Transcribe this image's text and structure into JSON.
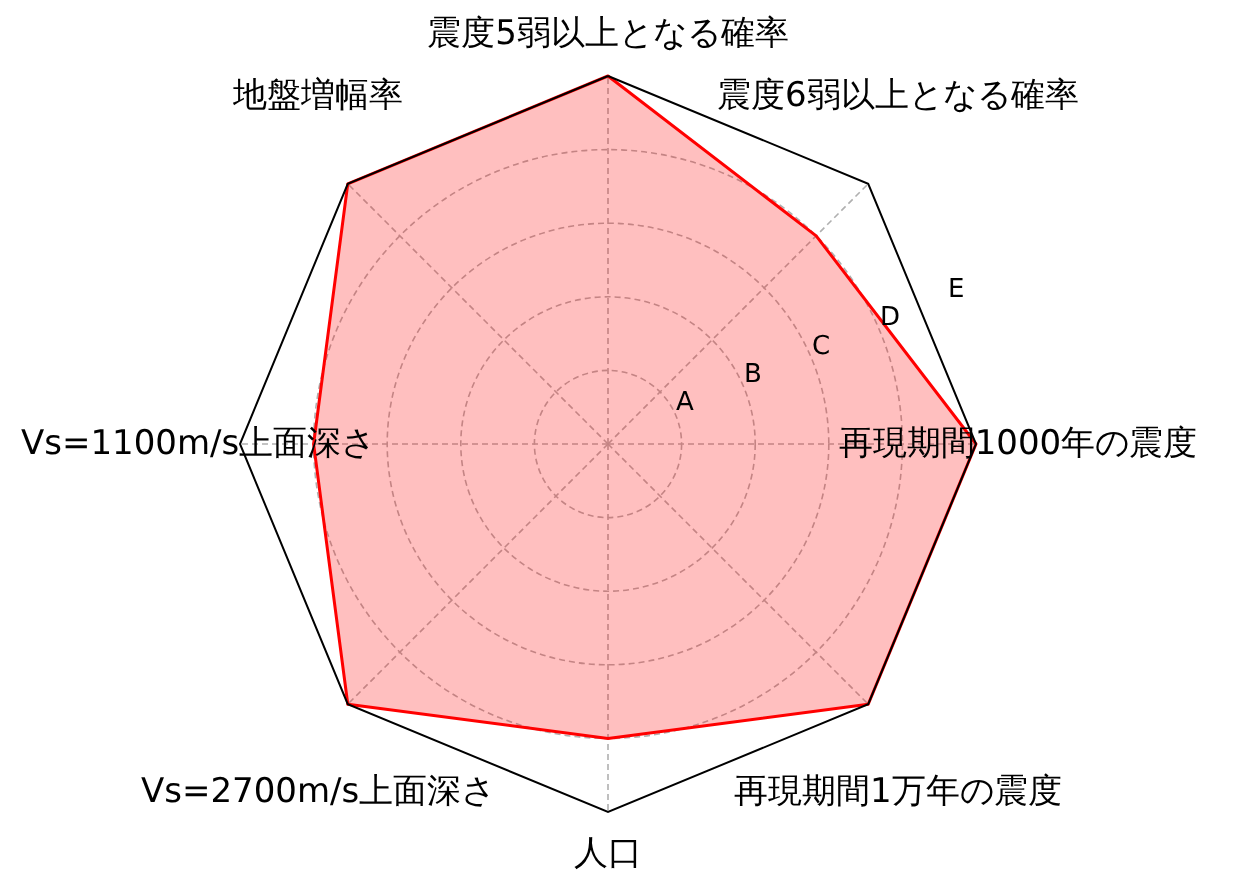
{
  "chart_data": {
    "type": "radar",
    "categories": [
      "震度5弱以上となる確率",
      "震度6弱以上となる確率",
      "再現期間1000年の震度",
      "再現期間1万年の震度",
      "人口",
      "Vs=2700m/s上面深さ",
      "Vs=1100m/s上面深さ",
      "地盤増幅率"
    ],
    "series": [
      {
        "color": "#ff0000",
        "values": [
          5,
          4,
          5,
          5,
          4,
          5,
          4,
          5
        ]
      }
    ],
    "ylim": [
      0,
      5
    ],
    "yticks": [
      {
        "value": 1,
        "label": "A"
      },
      {
        "value": 2,
        "label": "B"
      },
      {
        "value": 3,
        "label": "C"
      },
      {
        "value": 4,
        "label": "D"
      },
      {
        "value": 5,
        "label": "E"
      }
    ],
    "grid": true
  }
}
